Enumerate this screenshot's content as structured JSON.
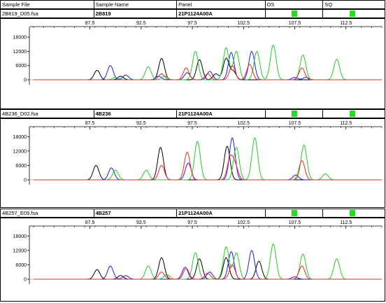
{
  "header": {
    "columns": [
      "Sample File",
      "Sample Name",
      "Panel",
      "OS",
      "SQ"
    ]
  },
  "colors": {
    "black": "#000000",
    "blue": "#1a1aff",
    "green": "#22cc22",
    "red": "#ff2020",
    "flag_green": "#22dd22"
  },
  "chart_data": [
    {
      "type": "line",
      "sample_file": "2B819_D05.fsa",
      "sample_name": "2B819",
      "panel": "21P1124A00A",
      "os_flag": "green",
      "sq_flag": "green",
      "xlim": [
        82.0,
        116.0
      ],
      "ylim": [
        -1500,
        21000
      ],
      "x_ticks": [
        87.5,
        92.5,
        97.5,
        102.5,
        107.5,
        112.5
      ],
      "y_ticks": [
        0,
        6000,
        12000,
        18000
      ],
      "series": [
        {
          "color": "black",
          "peaks": [
            [
              88.2,
              4000
            ],
            [
              90.5,
              1500
            ],
            [
              94.5,
              9000
            ],
            [
              98.2,
              8500
            ],
            [
              99.8,
              2500
            ],
            [
              100.8,
              9000
            ],
            [
              101.5,
              3500
            ]
          ]
        },
        {
          "color": "blue",
          "peaks": [
            [
              89.5,
              6000
            ],
            [
              91.0,
              2000
            ],
            [
              94.2,
              1500
            ],
            [
              97.0,
              3000
            ],
            [
              99.2,
              3500
            ],
            [
              101.3,
              11500
            ],
            [
              103.3,
              12000
            ],
            [
              107.5,
              1000
            ],
            [
              108.6,
              1000
            ]
          ]
        },
        {
          "color": "green",
          "peaks": [
            [
              90.0,
              1000
            ],
            [
              93.2,
              5500
            ],
            [
              94.8,
              1500
            ],
            [
              97.8,
              12000
            ],
            [
              100.8,
              13500
            ],
            [
              101.8,
              12000
            ],
            [
              103.8,
              12000
            ],
            [
              105.4,
              14700
            ],
            [
              108.3,
              10500
            ],
            [
              111.6,
              8700
            ]
          ]
        },
        {
          "color": "red",
          "peaks": [
            [
              94.5,
              2500
            ],
            [
              96.9,
              5000
            ],
            [
              99.0,
              2500
            ],
            [
              101.4,
              6000
            ],
            [
              103.1,
              6500
            ],
            [
              108.2,
              5000
            ]
          ]
        }
      ]
    },
    {
      "type": "line",
      "sample_file": "4B236_D02.fsa",
      "sample_name": "4B236",
      "panel": "21P1124A00A",
      "os_flag": "green",
      "sq_flag": "green",
      "xlim": [
        82.0,
        116.0
      ],
      "ylim": [
        -1500,
        21000
      ],
      "x_ticks": [
        87.5,
        92.5,
        97.5,
        102.5,
        107.5,
        112.5
      ],
      "y_ticks": [
        0,
        6000,
        12000,
        18000
      ],
      "series": [
        {
          "color": "black",
          "peaks": [
            [
              88.1,
              6000
            ],
            [
              94.4,
              13500
            ],
            [
              100.9,
              14000
            ]
          ]
        },
        {
          "color": "blue",
          "peaks": [
            [
              89.6,
              5000
            ],
            [
              97.1,
              7000
            ],
            [
              101.4,
              17500
            ],
            [
              107.6,
              2000
            ]
          ]
        },
        {
          "color": "green",
          "peaks": [
            [
              90.0,
              4000
            ],
            [
              93.0,
              4000
            ],
            [
              98.0,
              16000
            ],
            [
              101.8,
              13500
            ],
            [
              103.6,
              17500
            ],
            [
              108.4,
              14500
            ],
            [
              110.5,
              2500
            ]
          ]
        },
        {
          "color": "red",
          "peaks": [
            [
              94.5,
              6000
            ],
            [
              97.0,
              11500
            ],
            [
              101.2,
              9000
            ],
            [
              101.7,
              5500
            ],
            [
              108.2,
              8000
            ]
          ]
        }
      ]
    },
    {
      "type": "line",
      "sample_file": "4B257_E09.fsa",
      "sample_name": "4B257",
      "panel": "21P1124A00A",
      "os_flag": "green",
      "sq_flag": "green",
      "xlim": [
        82.0,
        116.0
      ],
      "ylim": [
        -1500,
        21000
      ],
      "x_ticks": [
        87.5,
        92.5,
        97.5,
        102.5,
        107.5,
        112.5
      ],
      "y_ticks": [
        0,
        6000,
        12000,
        18000
      ],
      "series": [
        {
          "color": "black",
          "peaks": [
            [
              88.2,
              4000
            ],
            [
              90.5,
              1500
            ],
            [
              94.5,
              9000
            ],
            [
              98.2,
              8500
            ],
            [
              100.8,
              9000
            ],
            [
              104.0,
              7500
            ]
          ]
        },
        {
          "color": "blue",
          "peaks": [
            [
              89.5,
              5500
            ],
            [
              91.0,
              1500
            ],
            [
              96.8,
              5000
            ],
            [
              99.2,
              3000
            ],
            [
              101.3,
              11500
            ],
            [
              103.3,
              12000
            ],
            [
              107.5,
              1000
            ]
          ]
        },
        {
          "color": "green",
          "peaks": [
            [
              93.2,
              5500
            ],
            [
              95.0,
              2000
            ],
            [
              97.8,
              11000
            ],
            [
              100.8,
              13500
            ],
            [
              101.8,
              11000
            ],
            [
              105.4,
              14700
            ],
            [
              108.3,
              10500
            ],
            [
              111.6,
              8500
            ]
          ]
        },
        {
          "color": "red",
          "peaks": [
            [
              94.5,
              3000
            ],
            [
              96.9,
              4500
            ],
            [
              99.0,
              2500
            ],
            [
              101.4,
              6000
            ],
            [
              108.2,
              5500
            ]
          ]
        }
      ]
    }
  ]
}
